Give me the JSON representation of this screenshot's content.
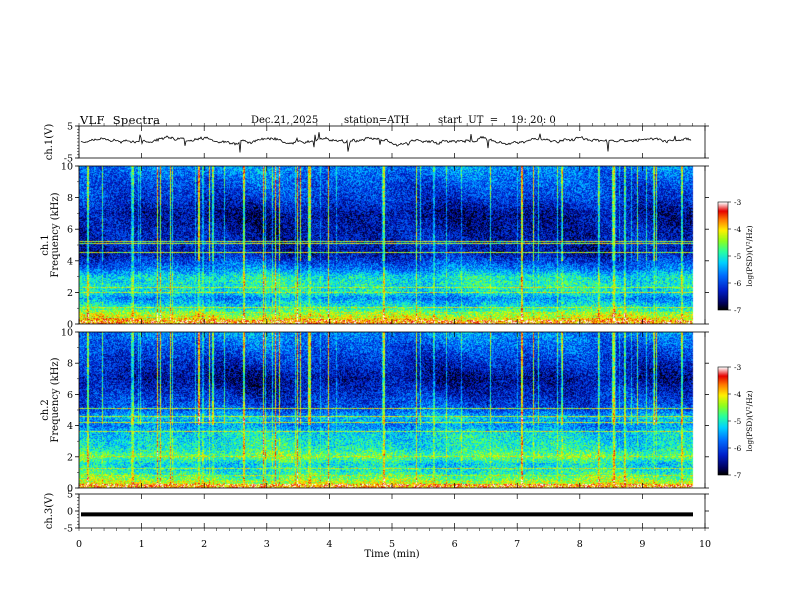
{
  "header": {
    "title": "VLF  Spectra",
    "date": "Dec.21, 2025",
    "station": "station=ATH",
    "start_ut": "start  UT  =    19: 20: 0"
  },
  "chart_data": [
    {
      "type": "line",
      "panel": "ch1-voltage",
      "ylabel": "ch.1(V)",
      "ylim": [
        -5,
        5
      ],
      "yticks": [
        "5",
        "-5"
      ],
      "baseline_volts": 0.3,
      "noise_amplitude_volts": 0.6
    },
    {
      "type": "heatmap",
      "panel": "ch1-spectrogram",
      "ylabel": "ch.1\nFrequency  (kHz)",
      "ylabel_top": "ch.1",
      "ylabel_bottom": "Frequency  (kHz)",
      "ylim": [
        0,
        10
      ],
      "yticks": [
        "0",
        "2",
        "4",
        "6",
        "8",
        "10"
      ],
      "colorbar": {
        "label": "log(PSD)(V²/Hz)",
        "range": [
          -7,
          -3
        ],
        "ticks": [
          "-3",
          "-4",
          "-5",
          "-6",
          "-7"
        ]
      },
      "frequency_profile_logpsd": [
        {
          "f": 0.0,
          "v": -4.2
        },
        {
          "f": 0.3,
          "v": -4.0
        },
        {
          "f": 1.0,
          "v": -5.0
        },
        {
          "f": 1.6,
          "v": -5.6
        },
        {
          "f": 2.0,
          "v": -5.1
        },
        {
          "f": 2.5,
          "v": -5.0
        },
        {
          "f": 3.0,
          "v": -5.1
        },
        {
          "f": 3.4,
          "v": -5.6
        },
        {
          "f": 3.8,
          "v": -5.9
        },
        {
          "f": 4.5,
          "v": -6.4
        },
        {
          "f": 5.0,
          "v": -6.3
        },
        {
          "f": 6.0,
          "v": -6.4
        },
        {
          "f": 7.0,
          "v": -6.5
        },
        {
          "f": 8.0,
          "v": -6.1
        },
        {
          "f": 9.0,
          "v": -5.9
        },
        {
          "f": 10.0,
          "v": -5.6
        }
      ],
      "tonal_lines_khz": [
        0.4,
        0.7,
        1.0,
        2.0,
        2.3,
        4.5,
        5.1,
        5.2
      ]
    },
    {
      "type": "heatmap",
      "panel": "ch2-spectrogram",
      "ylabel": "ch.2\nFrequency  (kHz)",
      "ylabel_top": "ch.2",
      "ylabel_bottom": "Frequency  (kHz)",
      "ylim": [
        0,
        10
      ],
      "yticks": [
        "0",
        "2",
        "4",
        "6",
        "8",
        "10"
      ],
      "colorbar": {
        "label": "log(PSD)(V²/Hz)",
        "range": [
          -7,
          -3
        ],
        "ticks": [
          "-3",
          "-4",
          "-5",
          "-6",
          "-7"
        ]
      },
      "frequency_profile_logpsd": [
        {
          "f": 0.0,
          "v": -4.0
        },
        {
          "f": 0.5,
          "v": -4.5
        },
        {
          "f": 1.0,
          "v": -5.0
        },
        {
          "f": 1.5,
          "v": -5.2
        },
        {
          "f": 2.0,
          "v": -4.6
        },
        {
          "f": 2.5,
          "v": -5.0
        },
        {
          "f": 3.0,
          "v": -5.1
        },
        {
          "f": 3.5,
          "v": -5.2
        },
        {
          "f": 4.0,
          "v": -5.6
        },
        {
          "f": 4.5,
          "v": -5.3
        },
        {
          "f": 5.0,
          "v": -5.9
        },
        {
          "f": 6.0,
          "v": -6.2
        },
        {
          "f": 7.0,
          "v": -6.5
        },
        {
          "f": 8.0,
          "v": -6.2
        },
        {
          "f": 9.0,
          "v": -5.9
        },
        {
          "f": 10.0,
          "v": -5.6
        }
      ],
      "tonal_lines_khz": [
        0.4,
        0.8,
        1.2,
        2.0,
        3.6,
        4.2,
        4.6,
        5.1
      ]
    },
    {
      "type": "line",
      "panel": "ch3-voltage",
      "ylabel": "ch.3(V)",
      "ylim": [
        -5,
        5
      ],
      "yticks": [
        "5",
        "0",
        "-5"
      ],
      "baseline_volts": -1.0,
      "xlabel": "Time  (min)",
      "xlim": [
        0,
        10
      ],
      "xticks": [
        "0",
        "1",
        "2",
        "3",
        "4",
        "5",
        "6",
        "7",
        "8",
        "9",
        "10"
      ]
    }
  ]
}
